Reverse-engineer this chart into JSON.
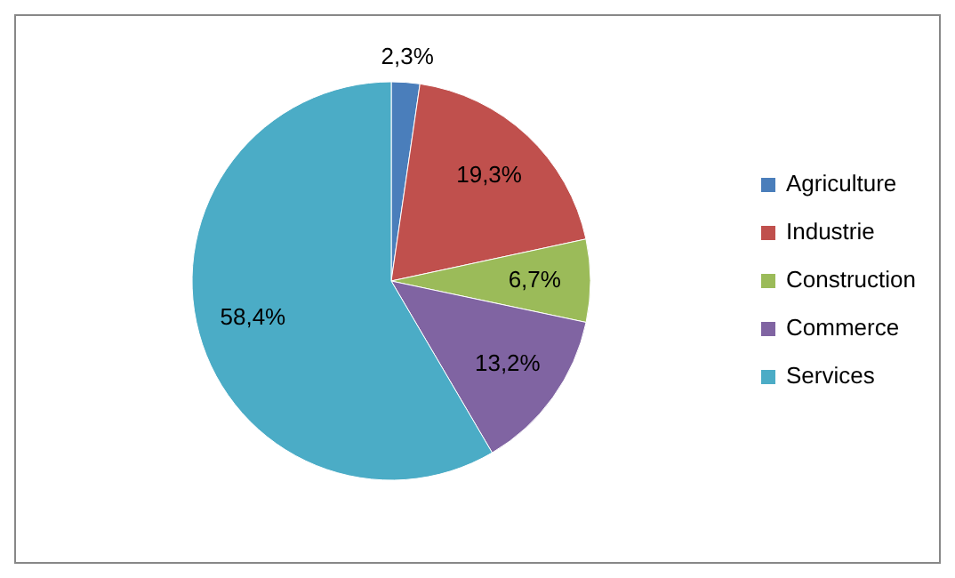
{
  "chart_data": {
    "type": "pie",
    "categories": [
      "Agriculture",
      "Industrie",
      "Construction",
      "Commerce",
      "Services"
    ],
    "values": [
      2.3,
      19.3,
      6.7,
      13.2,
      58.4
    ],
    "colors": [
      "#4a7ebb",
      "#c0504d",
      "#9bbb59",
      "#8064a2",
      "#4bacc6"
    ],
    "value_labels": [
      "2,3%",
      "19,3%",
      "6,7%",
      "13,2%",
      "58,4%"
    ],
    "legend": "right"
  }
}
